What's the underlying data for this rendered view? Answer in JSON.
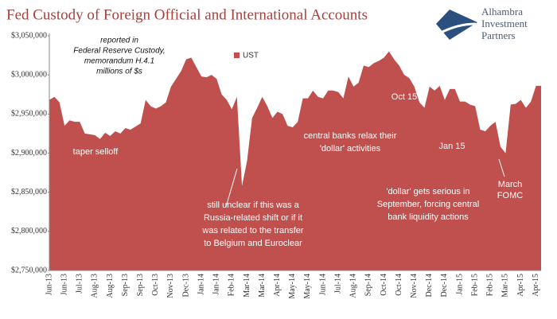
{
  "chart_data": {
    "type": "area",
    "title": "Fed Custody of Foreign Official and International Accounts",
    "logo": [
      "Alhambra",
      "Investment",
      "Partners"
    ],
    "categories": [
      "Jun-13",
      null,
      null,
      "Jun-13",
      null,
      null,
      "Jul-13",
      null,
      null,
      "Aug-13",
      null,
      null,
      "Aug-13",
      null,
      null,
      "Sep-13",
      null,
      null,
      "Sep-13",
      null,
      null,
      "Oct-13",
      null,
      null,
      "Nov-13",
      null,
      null,
      "Dec-13",
      null,
      null,
      "Jan-14",
      null,
      null,
      "Jan-14",
      null,
      null,
      "Feb-14",
      null,
      null,
      "Mar-14",
      null,
      null,
      "Mar-14",
      null,
      null,
      "Apr-14",
      null,
      null,
      "May-14",
      null,
      null,
      "May-14",
      null,
      null,
      "Jun-14",
      null,
      null,
      "Jul-14",
      null,
      null,
      "Aug-14",
      null,
      null,
      "Sep-14",
      null,
      null,
      "Oct-14",
      null,
      null,
      "Oct-14",
      null,
      null,
      "Nov-14",
      null,
      null,
      "Dec-14",
      null,
      null,
      "Dec-14",
      null,
      null,
      "Jan-15",
      null,
      null,
      "Feb-15",
      null,
      null,
      "Feb-15",
      null,
      null,
      "Mar-15",
      null,
      null,
      "Apr-15",
      null,
      null,
      "Apr-15",
      null
    ],
    "series": [
      {
        "name": "UST",
        "color": "#c0504d",
        "values": [
          2968000,
          2972000,
          2965000,
          2935000,
          2942000,
          2940000,
          2940000,
          2925000,
          2924000,
          2923000,
          2918000,
          2926000,
          2922000,
          2928000,
          2925000,
          2932000,
          2930000,
          2934000,
          2938000,
          2968000,
          2960000,
          2957000,
          2960000,
          2965000,
          2985000,
          2995000,
          3005000,
          3020000,
          3022000,
          3010000,
          2998000,
          2997000,
          3000000,
          2995000,
          2975000,
          2968000,
          2956000,
          2972000,
          2858000,
          2890000,
          2945000,
          2958000,
          2972000,
          2960000,
          2945000,
          2953000,
          2950000,
          2935000,
          2933000,
          2940000,
          2970000,
          2970000,
          2980000,
          2972000,
          2970000,
          2980000,
          2980000,
          2978000,
          2970000,
          2998000,
          2985000,
          2990000,
          3012000,
          3010000,
          3015000,
          3018000,
          3022000,
          3030000,
          3020000,
          3012000,
          3000000,
          2996000,
          2985000,
          2965000,
          2958000,
          2985000,
          2980000,
          2986000,
          2968000,
          2982000,
          2982000,
          2966000,
          2966000,
          2962000,
          2960000,
          2930000,
          2928000,
          2935000,
          2940000,
          2908000,
          2900000,
          2962000,
          2963000,
          2968000,
          2958000,
          2966000,
          2986000,
          2986000
        ]
      }
    ],
    "ylim": [
      2750000,
      3050000
    ],
    "yticks": [
      {
        "value": 2750000,
        "label": "$2,750,000"
      },
      {
        "value": 2800000,
        "label": "$2,800,000"
      },
      {
        "value": 2850000,
        "label": "$2,850,000"
      },
      {
        "value": 2900000,
        "label": "$2,900,000"
      },
      {
        "value": 2950000,
        "label": "$2,950,000"
      },
      {
        "value": 3000000,
        "label": "$3,000,000"
      },
      {
        "value": 3050000,
        "label": "$3,050,000"
      }
    ],
    "grid": false,
    "annotations": [
      [
        "reported in",
        "Federal Reserve Custody,",
        "memorandum H.4.1",
        "millions of $s"
      ],
      [
        "taper selloff"
      ],
      [
        "still unclear if this was a",
        "Russia-related shift or if it",
        "was related to the transfer",
        "to Belgium and Euroclear"
      ],
      [
        "central banks relax their",
        "'dollar' activities"
      ],
      [
        "Oct 15"
      ],
      [
        "Jan 15"
      ],
      [
        "'dollar' gets serious in",
        "September, forcing central",
        "bank liquidity actions"
      ],
      [
        "March",
        "FOMC"
      ]
    ]
  }
}
